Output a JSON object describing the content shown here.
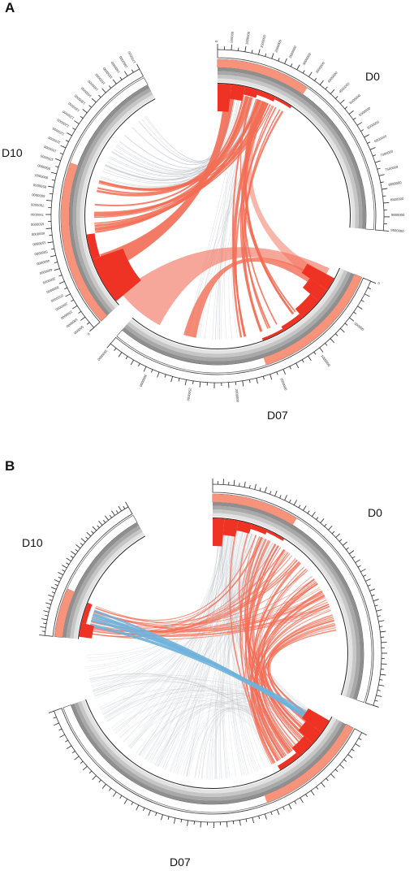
{
  "panels": [
    {
      "letter": "A",
      "segments": [
        {
          "name": "D0",
          "ticks": [
            "0",
            "500000",
            "1000000",
            "1500000",
            "2000000",
            "2500000",
            "3000000",
            "3500000",
            "4000000",
            "4500000",
            "5000000",
            "5500000",
            "6000000",
            "6500000",
            "7000000",
            "7500000",
            "8000000",
            "8500000",
            "9000000",
            "9500000"
          ]
        },
        {
          "name": "D07",
          "ticks": [
            "0",
            "500000",
            "1000000",
            "1500000",
            "2000000",
            "2500000",
            "3000000",
            "3500000"
          ]
        },
        {
          "name": "D10",
          "ticks": [
            "0",
            "500000",
            "1000000",
            "1500000",
            "2000000",
            "2500000",
            "3000000",
            "3500000",
            "4000000",
            "4500000",
            "5000000",
            "5500000",
            "6000000",
            "6500000",
            "7000000",
            "7500000",
            "8000000",
            "8500000",
            "9000000",
            "9500000",
            "1000000",
            "1050000",
            "1100000",
            "1150000",
            "1200000",
            "1250000",
            "1300000",
            "1350000",
            "1400000",
            "1450000",
            "1500000",
            "1550000",
            "1600000",
            "1650000",
            "1700000"
          ]
        }
      ]
    },
    {
      "letter": "B",
      "segments": [
        {
          "name": "D0"
        },
        {
          "name": "D10"
        },
        {
          "name": "D07"
        }
      ]
    }
  ],
  "colors": {
    "highlight_band": "#f7937a",
    "histogram": "#ee3224",
    "link_red": "#f26d55",
    "link_blue": "#6fb2dc",
    "link_gray": "#b9bcc4",
    "track_gray_1": "#e2e2e2",
    "track_gray_2": "#c6c6c6",
    "track_gray_3": "#a8a8a8",
    "track_gray_4": "#8f8f8f"
  }
}
